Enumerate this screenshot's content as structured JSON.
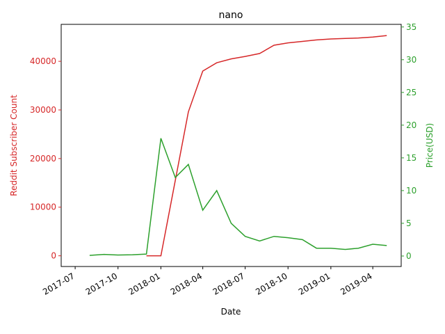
{
  "chart_data": {
    "type": "line",
    "title": "nano",
    "x_label": "Date",
    "y_label": "Reddit Subscriber Count",
    "y2_label": "Price(USD)",
    "x": [
      "2017-08",
      "2017-09",
      "2017-10",
      "2017-11",
      "2017-12",
      "2018-01",
      "2018-02",
      "2018-03",
      "2018-04",
      "2018-05",
      "2018-06",
      "2018-07",
      "2018-08",
      "2018-09",
      "2018-10",
      "2018-11",
      "2018-12",
      "2019-01",
      "2019-02",
      "2019-03",
      "2019-04",
      "2019-05"
    ],
    "series": [
      {
        "name": "Reddit Subscriber Count",
        "color": "#d62728",
        "axis": "y",
        "values": [
          null,
          null,
          null,
          null,
          0,
          0,
          15500,
          29600,
          38000,
          39700,
          40500,
          41000,
          41600,
          43300,
          43800,
          44100,
          44400,
          44600,
          44700,
          44800,
          45000,
          45300
        ]
      },
      {
        "name": "Price(USD)",
        "color": "#2ca02c",
        "axis": "y2",
        "values": [
          0.1,
          0.25,
          0.15,
          0.2,
          0.3,
          18,
          12,
          14,
          7,
          10,
          5,
          3,
          2.3,
          3,
          2.8,
          2.5,
          1.2,
          1.2,
          1.0,
          1.2,
          1.8,
          1.6
        ]
      }
    ],
    "xlim": [
      "2017-06",
      "2019-06"
    ],
    "xticks": [
      "2017-07",
      "2017-10",
      "2018-01",
      "2018-04",
      "2018-07",
      "2018-10",
      "2019-01",
      "2019-04"
    ],
    "ylim": [
      -2200,
      47600
    ],
    "yticks": [
      0,
      10000,
      20000,
      30000,
      40000
    ],
    "y2lim": [
      -1.6,
      35.4
    ],
    "y2ticks": [
      0,
      5,
      10,
      15,
      20,
      25,
      30,
      35
    ]
  }
}
